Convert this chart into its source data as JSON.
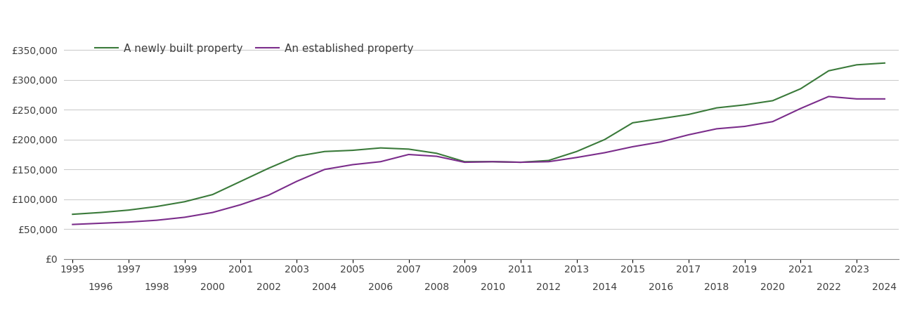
{
  "newly_built": {
    "years": [
      1995,
      1996,
      1997,
      1998,
      1999,
      2000,
      2001,
      2002,
      2003,
      2004,
      2005,
      2006,
      2007,
      2008,
      2009,
      2010,
      2011,
      2012,
      2013,
      2014,
      2015,
      2016,
      2017,
      2018,
      2019,
      2020,
      2021,
      2022,
      2023,
      2024
    ],
    "values": [
      75000,
      78000,
      82000,
      88000,
      96000,
      108000,
      130000,
      152000,
      172000,
      180000,
      182000,
      186000,
      184000,
      177000,
      163000,
      163000,
      162000,
      165000,
      180000,
      200000,
      228000,
      235000,
      242000,
      253000,
      258000,
      265000,
      285000,
      315000,
      325000,
      328000
    ]
  },
  "established": {
    "years": [
      1995,
      1996,
      1997,
      1998,
      1999,
      2000,
      2001,
      2002,
      2003,
      2004,
      2005,
      2006,
      2007,
      2008,
      2009,
      2010,
      2011,
      2012,
      2013,
      2014,
      2015,
      2016,
      2017,
      2018,
      2019,
      2020,
      2021,
      2022,
      2023,
      2024
    ],
    "values": [
      58000,
      60000,
      62000,
      65000,
      70000,
      78000,
      91000,
      107000,
      130000,
      150000,
      158000,
      163000,
      175000,
      172000,
      162000,
      163000,
      162000,
      163000,
      170000,
      178000,
      188000,
      196000,
      208000,
      218000,
      222000,
      230000,
      252000,
      272000,
      268000,
      268000
    ]
  },
  "newly_built_color": "#3a7a3a",
  "established_color": "#7b2d8b",
  "legend_labels": [
    "A newly built property",
    "An established property"
  ],
  "yticks": [
    0,
    50000,
    100000,
    150000,
    200000,
    250000,
    300000,
    350000
  ],
  "ylim": [
    0,
    370000
  ],
  "xlim": [
    1994.7,
    2024.5
  ],
  "line_width": 1.5,
  "background_color": "#ffffff",
  "grid_color": "#cccccc",
  "font_color": "#404040",
  "font_size": 11,
  "tick_font_size": 10
}
